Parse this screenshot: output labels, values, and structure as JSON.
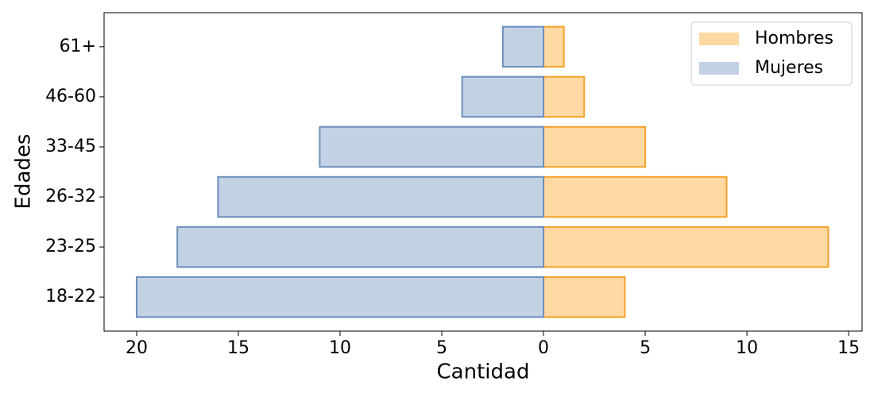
{
  "chart_data": {
    "type": "pyramid",
    "xlabel": "Cantidad",
    "ylabel": "Edades",
    "categories": [
      "18-22",
      "23-25",
      "26-32",
      "33-45",
      "46-60",
      "61+"
    ],
    "series": [
      {
        "name": "Hombres",
        "color": "#ffd8a2",
        "edgecolor": "#f5a12a",
        "values": [
          4,
          14,
          9,
          5,
          2,
          1
        ]
      },
      {
        "name": "Mujeres",
        "color": "#c3d1e5",
        "edgecolor": "#6a8fbb",
        "values": [
          -20,
          -18,
          -16,
          -11,
          -4,
          -2
        ]
      }
    ],
    "xlim": [
      -21.6,
      15.66
    ],
    "xticks": [
      {
        "value": -20,
        "label": "20"
      },
      {
        "value": -15,
        "label": "15"
      },
      {
        "value": -10,
        "label": "10"
      },
      {
        "value": -5,
        "label": "5"
      },
      0,
      5,
      10,
      15
    ],
    "legend": "upper right"
  }
}
